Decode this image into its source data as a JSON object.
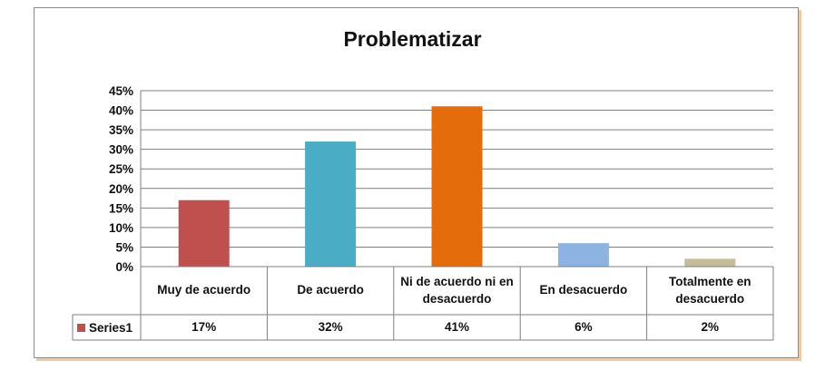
{
  "chart_data": {
    "type": "bar",
    "title": "Problematizar",
    "categories": [
      "Muy de acuerdo",
      "De acuerdo",
      "Ni de acuerdo ni en desacuerdo",
      "En desacuerdo",
      "Totalmente en desacuerdo"
    ],
    "series": [
      {
        "name": "Series1",
        "values": [
          17,
          32,
          41,
          6,
          2
        ],
        "value_labels": [
          "17%",
          "32%",
          "41%",
          "6%",
          "2%"
        ],
        "colors": [
          "#c0504d",
          "#4bacc6",
          "#e46c0a",
          "#8db3e2",
          "#c4bd97"
        ]
      }
    ],
    "ylim": [
      0,
      45
    ],
    "yticks": [
      0,
      5,
      10,
      15,
      20,
      25,
      30,
      35,
      40,
      45
    ],
    "ytick_labels": [
      "0%",
      "5%",
      "10%",
      "15%",
      "20%",
      "25%",
      "30%",
      "35%",
      "40%",
      "45%"
    ],
    "legend_key_color": "#c0504d",
    "grid": true,
    "legend": "data-table"
  }
}
